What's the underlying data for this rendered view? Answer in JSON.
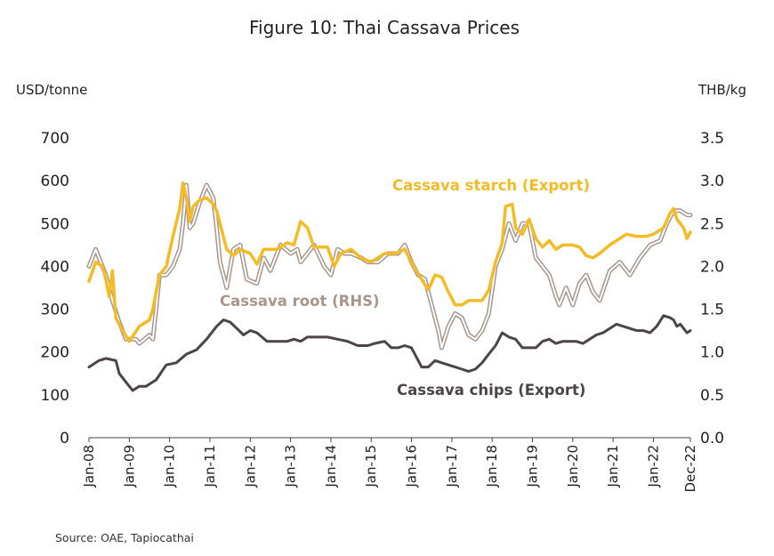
{
  "chart_data": {
    "type": "line",
    "title": "Figure 10: Thai Cassava Prices",
    "y_left_unit": "USD/tonne",
    "y_right_unit": "THB/kg",
    "y_left_ticks": [
      "700",
      "600",
      "500",
      "400",
      "300",
      "200",
      "100",
      "0"
    ],
    "y_right_ticks": [
      "3.5",
      "3.0",
      "2.5",
      "2.0",
      "1.5",
      "1.0",
      "0.5",
      "0.0"
    ],
    "ylim_left": [
      0,
      700
    ],
    "ylim_right": [
      0,
      3.5
    ],
    "x_ticks": [
      "Jan-08",
      "Jan-09",
      "Jan-10",
      "Jan-11",
      "Jan-12",
      "Jan-13",
      "Jan-14",
      "Jan-15",
      "Jan-16",
      "Jan-17",
      "Jan-18",
      "Jan-19",
      "Jan-20",
      "Jan-21",
      "Jan-22",
      "Dec-22"
    ],
    "x_range": [
      "Jan-08",
      "Dec-22"
    ],
    "grid": false,
    "source": "Source: OAE, Tapiocathai",
    "series": [
      {
        "name": "Cassava starch (Export)",
        "axis": "left",
        "color": "#F5BB24",
        "points": [
          [
            "Jan-08",
            365
          ],
          [
            "Mar-08",
            410
          ],
          [
            "May-08",
            400
          ],
          [
            "Jun-08",
            370
          ],
          [
            "Jul-08",
            330
          ],
          [
            "Aug-08",
            390
          ],
          [
            "Sep-08",
            280
          ],
          [
            "Nov-08",
            250
          ],
          [
            "Jan-09",
            225
          ],
          [
            "Apr-09",
            260
          ],
          [
            "Jul-09",
            275
          ],
          [
            "Aug-09",
            300
          ],
          [
            "Oct-09",
            380
          ],
          [
            "Dec-09",
            400
          ],
          [
            "Feb-10",
            470
          ],
          [
            "Apr-10",
            535
          ],
          [
            "May-10",
            595
          ],
          [
            "Jun-10",
            560
          ],
          [
            "Jul-10",
            505
          ],
          [
            "Aug-10",
            540
          ],
          [
            "Oct-10",
            555
          ],
          [
            "Dec-10",
            560
          ],
          [
            "Feb-11",
            545
          ],
          [
            "Mar-11",
            530
          ],
          [
            "Jun-11",
            440
          ],
          [
            "Aug-11",
            425
          ],
          [
            "Oct-11",
            440
          ],
          [
            "Jan-12",
            430
          ],
          [
            "Mar-12",
            405
          ],
          [
            "May-12",
            440
          ],
          [
            "Sep-12",
            440
          ],
          [
            "Dec-12",
            455
          ],
          [
            "Feb-13",
            450
          ],
          [
            "Apr-13",
            505
          ],
          [
            "Jun-13",
            490
          ],
          [
            "Aug-13",
            445
          ],
          [
            "Dec-13",
            445
          ],
          [
            "Feb-14",
            400
          ],
          [
            "Apr-14",
            430
          ],
          [
            "Jul-14",
            440
          ],
          [
            "Oct-14",
            420
          ],
          [
            "Jan-15",
            410
          ],
          [
            "May-15",
            430
          ],
          [
            "Aug-15",
            430
          ],
          [
            "Nov-15",
            440
          ],
          [
            "Feb-16",
            395
          ],
          [
            "Apr-16",
            370
          ],
          [
            "Jun-16",
            345
          ],
          [
            "Aug-16",
            380
          ],
          [
            "Oct-16",
            375
          ],
          [
            "Dec-16",
            340
          ],
          [
            "Feb-17",
            310
          ],
          [
            "Apr-17",
            310
          ],
          [
            "Jun-17",
            320
          ],
          [
            "Aug-17",
            320
          ],
          [
            "Oct-17",
            320
          ],
          [
            "Dec-17",
            345
          ],
          [
            "Feb-18",
            410
          ],
          [
            "Apr-18",
            455
          ],
          [
            "May-18",
            540
          ],
          [
            "Jul-18",
            545
          ],
          [
            "Aug-18",
            490
          ],
          [
            "Oct-18",
            475
          ],
          [
            "Dec-18",
            510
          ],
          [
            "Feb-19",
            465
          ],
          [
            "Apr-19",
            445
          ],
          [
            "Jun-19",
            460
          ],
          [
            "Aug-19",
            440
          ],
          [
            "Oct-19",
            450
          ],
          [
            "Jan-20",
            450
          ],
          [
            "Mar-20",
            445
          ],
          [
            "May-20",
            425
          ],
          [
            "Jul-20",
            420
          ],
          [
            "Sep-20",
            430
          ],
          [
            "Dec-20",
            450
          ],
          [
            "Mar-21",
            465
          ],
          [
            "May-21",
            475
          ],
          [
            "Aug-21",
            470
          ],
          [
            "Nov-21",
            470
          ],
          [
            "Jan-22",
            475
          ],
          [
            "Apr-22",
            490
          ],
          [
            "Jun-22",
            525
          ],
          [
            "Jul-22",
            535
          ],
          [
            "Aug-22",
            510
          ],
          [
            "Oct-22",
            490
          ],
          [
            "Nov-22",
            465
          ],
          [
            "Dec-22",
            480
          ]
        ]
      },
      {
        "name": "Cassava root (RHS)",
        "axis": "right",
        "color": "#A8968C",
        "points": [
          [
            "Jan-08",
            2.0
          ],
          [
            "Mar-08",
            2.2
          ],
          [
            "Apr-08",
            2.1
          ],
          [
            "Jun-08",
            1.9
          ],
          [
            "Aug-08",
            1.6
          ],
          [
            "Oct-08",
            1.35
          ],
          [
            "Dec-08",
            1.15
          ],
          [
            "Mar-09",
            1.15
          ],
          [
            "Apr-09",
            1.1
          ],
          [
            "Jul-09",
            1.2
          ],
          [
            "Aug-09",
            1.15
          ],
          [
            "Sep-09",
            1.5
          ],
          [
            "Oct-09",
            1.9
          ],
          [
            "Dec-09",
            1.9
          ],
          [
            "Feb-10",
            2.0
          ],
          [
            "Apr-10",
            2.2
          ],
          [
            "May-10",
            2.5
          ],
          [
            "Jun-10",
            2.95
          ],
          [
            "Jul-10",
            2.45
          ],
          [
            "Aug-10",
            2.5
          ],
          [
            "Oct-10",
            2.75
          ],
          [
            "Dec-10",
            2.95
          ],
          [
            "Feb-11",
            2.8
          ],
          [
            "Mar-11",
            2.45
          ],
          [
            "Apr-11",
            2.05
          ],
          [
            "Jun-11",
            1.75
          ],
          [
            "Aug-11",
            2.2
          ],
          [
            "Oct-11",
            2.25
          ],
          [
            "Dec-11",
            1.85
          ],
          [
            "Mar-12",
            1.8
          ],
          [
            "May-12",
            2.1
          ],
          [
            "Jul-12",
            1.95
          ],
          [
            "Oct-12",
            2.25
          ],
          [
            "Jan-13",
            2.15
          ],
          [
            "Mar-13",
            2.2
          ],
          [
            "Apr-13",
            2.05
          ],
          [
            "Jun-13",
            2.15
          ],
          [
            "Aug-13",
            2.25
          ],
          [
            "Nov-13",
            2.0
          ],
          [
            "Jan-14",
            1.9
          ],
          [
            "Mar-14",
            2.2
          ],
          [
            "May-14",
            2.15
          ],
          [
            "Jul-14",
            2.15
          ],
          [
            "Oct-14",
            2.1
          ],
          [
            "Dec-14",
            2.05
          ],
          [
            "Mar-15",
            2.05
          ],
          [
            "Jun-15",
            2.15
          ],
          [
            "Sep-15",
            2.15
          ],
          [
            "Nov-15",
            2.25
          ],
          [
            "Jan-16",
            2.05
          ],
          [
            "Mar-16",
            1.9
          ],
          [
            "May-16",
            1.85
          ],
          [
            "Jul-16",
            1.55
          ],
          [
            "Sep-16",
            1.25
          ],
          [
            "Oct-16",
            1.05
          ],
          [
            "Dec-16",
            1.3
          ],
          [
            "Feb-17",
            1.45
          ],
          [
            "Apr-17",
            1.4
          ],
          [
            "Jun-17",
            1.2
          ],
          [
            "Aug-17",
            1.15
          ],
          [
            "Oct-17",
            1.25
          ],
          [
            "Dec-17",
            1.45
          ],
          [
            "Feb-18",
            2.0
          ],
          [
            "Apr-18",
            2.2
          ],
          [
            "Jun-18",
            2.5
          ],
          [
            "Aug-18",
            2.3
          ],
          [
            "Oct-18",
            2.5
          ],
          [
            "Dec-18",
            2.5
          ],
          [
            "Feb-19",
            2.1
          ],
          [
            "Apr-19",
            2.0
          ],
          [
            "Jun-19",
            1.9
          ],
          [
            "Aug-19",
            1.65
          ],
          [
            "Sep-19",
            1.55
          ],
          [
            "Nov-19",
            1.75
          ],
          [
            "Jan-20",
            1.55
          ],
          [
            "Mar-20",
            1.8
          ],
          [
            "May-20",
            1.9
          ],
          [
            "Jul-20",
            1.7
          ],
          [
            "Sep-20",
            1.6
          ],
          [
            "Dec-20",
            1.95
          ],
          [
            "Mar-21",
            2.05
          ],
          [
            "Jun-21",
            1.9
          ],
          [
            "Sep-21",
            2.1
          ],
          [
            "Dec-21",
            2.25
          ],
          [
            "Mar-22",
            2.3
          ],
          [
            "May-22",
            2.5
          ],
          [
            "Jul-22",
            2.65
          ],
          [
            "Sep-22",
            2.65
          ],
          [
            "Nov-22",
            2.6
          ],
          [
            "Dec-22",
            2.6
          ]
        ]
      },
      {
        "name": "Cassava chips (Export)",
        "axis": "left",
        "color": "#4D4447",
        "points": [
          [
            "Jan-08",
            165
          ],
          [
            "Apr-08",
            180
          ],
          [
            "Jun-08",
            185
          ],
          [
            "Sep-08",
            180
          ],
          [
            "Oct-08",
            150
          ],
          [
            "Dec-08",
            130
          ],
          [
            "Feb-09",
            110
          ],
          [
            "Apr-09",
            120
          ],
          [
            "Jun-09",
            120
          ],
          [
            "Sep-09",
            135
          ],
          [
            "Dec-09",
            170
          ],
          [
            "Mar-10",
            175
          ],
          [
            "Jun-10",
            195
          ],
          [
            "Sep-10",
            205
          ],
          [
            "Dec-10",
            230
          ],
          [
            "Mar-11",
            260
          ],
          [
            "May-11",
            275
          ],
          [
            "Jul-11",
            270
          ],
          [
            "Sep-11",
            255
          ],
          [
            "Nov-11",
            240
          ],
          [
            "Jan-12",
            250
          ],
          [
            "Mar-12",
            245
          ],
          [
            "Jun-12",
            225
          ],
          [
            "Sep-12",
            225
          ],
          [
            "Dec-12",
            225
          ],
          [
            "Feb-13",
            230
          ],
          [
            "Apr-13",
            225
          ],
          [
            "Jun-13",
            235
          ],
          [
            "Sep-13",
            235
          ],
          [
            "Dec-13",
            235
          ],
          [
            "Mar-14",
            230
          ],
          [
            "Jun-14",
            225
          ],
          [
            "Sep-14",
            215
          ],
          [
            "Dec-14",
            215
          ],
          [
            "Feb-15",
            220
          ],
          [
            "May-15",
            225
          ],
          [
            "Jul-15",
            210
          ],
          [
            "Sep-15",
            210
          ],
          [
            "Nov-15",
            215
          ],
          [
            "Jan-16",
            210
          ],
          [
            "Mar-16",
            180
          ],
          [
            "Apr-16",
            165
          ],
          [
            "Jun-16",
            165
          ],
          [
            "Aug-16",
            180
          ],
          [
            "Oct-16",
            175
          ],
          [
            "Dec-16",
            170
          ],
          [
            "Feb-17",
            165
          ],
          [
            "Apr-17",
            160
          ],
          [
            "Jun-17",
            155
          ],
          [
            "Aug-17",
            160
          ],
          [
            "Oct-17",
            175
          ],
          [
            "Dec-17",
            195
          ],
          [
            "Feb-18",
            215
          ],
          [
            "Apr-18",
            245
          ],
          [
            "Jun-18",
            235
          ],
          [
            "Aug-18",
            230
          ],
          [
            "Oct-18",
            210
          ],
          [
            "Dec-18",
            210
          ],
          [
            "Feb-19",
            210
          ],
          [
            "Apr-19",
            225
          ],
          [
            "Jun-19",
            230
          ],
          [
            "Aug-19",
            220
          ],
          [
            "Oct-19",
            225
          ],
          [
            "Dec-19",
            225
          ],
          [
            "Feb-20",
            225
          ],
          [
            "Apr-20",
            220
          ],
          [
            "Jun-20",
            230
          ],
          [
            "Aug-20",
            240
          ],
          [
            "Oct-20",
            245
          ],
          [
            "Dec-20",
            255
          ],
          [
            "Feb-21",
            265
          ],
          [
            "Apr-21",
            260
          ],
          [
            "Jun-21",
            255
          ],
          [
            "Aug-21",
            250
          ],
          [
            "Oct-21",
            250
          ],
          [
            "Dec-21",
            245
          ],
          [
            "Feb-22",
            260
          ],
          [
            "Apr-22",
            285
          ],
          [
            "Jun-22",
            280
          ],
          [
            "Jul-22",
            275
          ],
          [
            "Aug-22",
            260
          ],
          [
            "Sep-22",
            265
          ],
          [
            "Oct-22",
            255
          ],
          [
            "Nov-22",
            245
          ],
          [
            "Dec-22",
            250
          ]
        ]
      }
    ]
  }
}
